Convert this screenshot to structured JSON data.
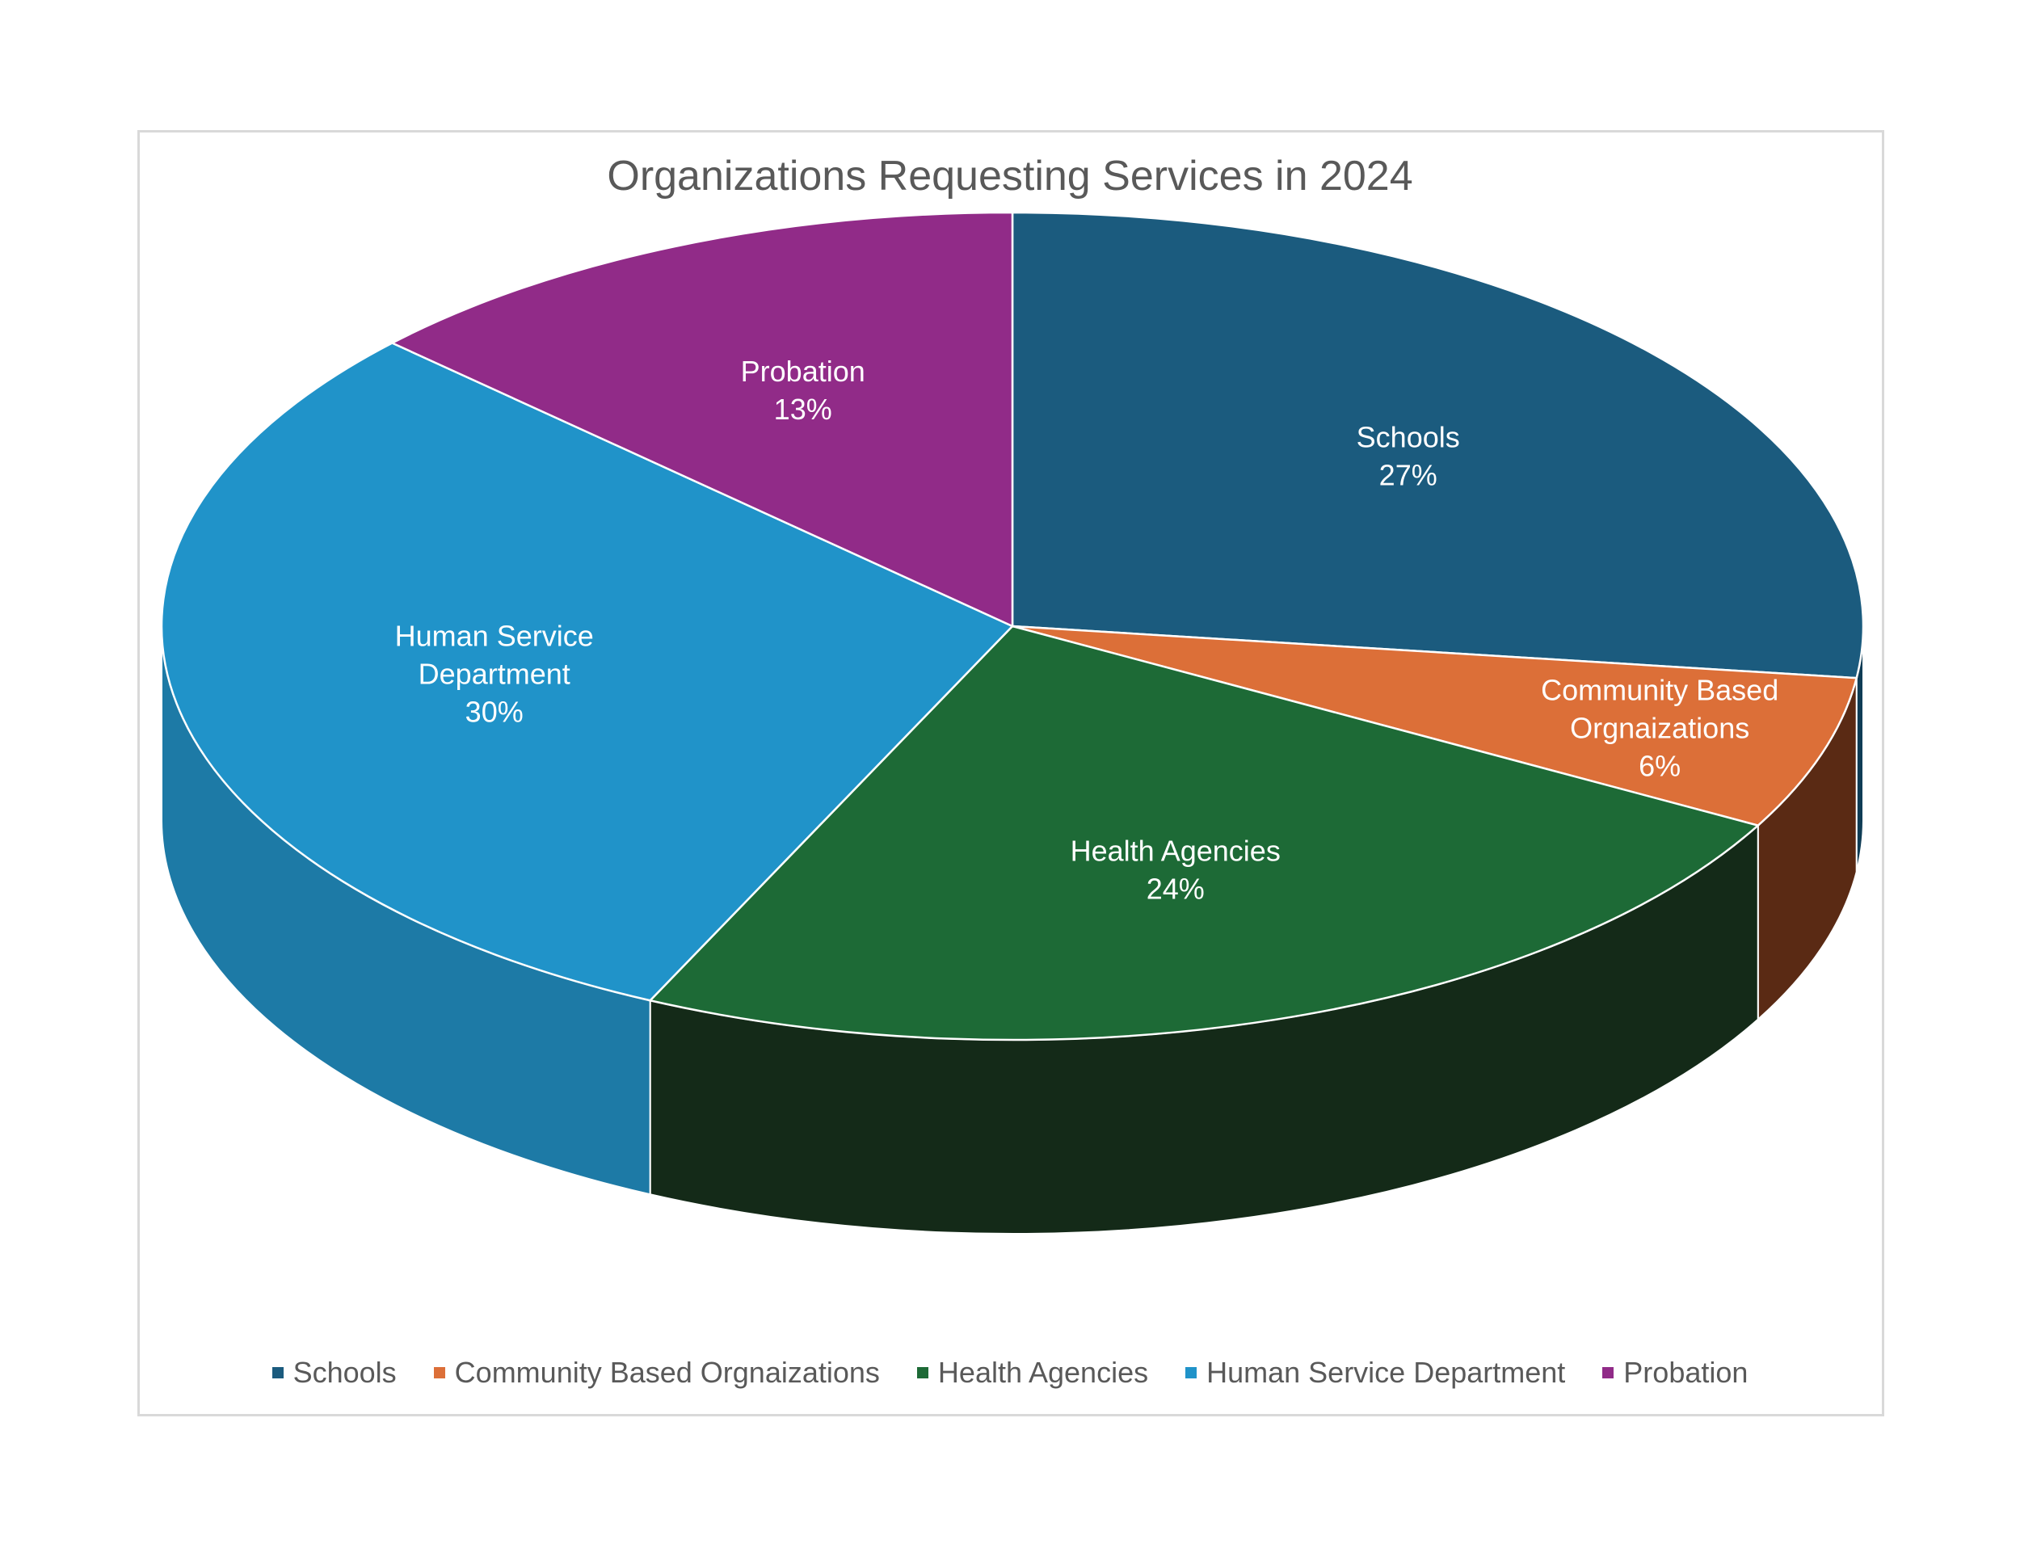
{
  "chart_data": {
    "type": "pie",
    "title": "Organizations Requesting Services in 2024",
    "legend_position": "bottom",
    "slices": [
      {
        "label": "Schools",
        "label_lines": [
          "Schools"
        ],
        "value": 27,
        "value_label": "27%",
        "color": "#1b5b7e",
        "side_color": "#0f3c55"
      },
      {
        "label": "Community Based Orgnaizations",
        "label_lines": [
          "Community Based",
          "Orgnaizations"
        ],
        "value": 6,
        "value_label": "6%",
        "color": "#dc6f38",
        "side_color": "#5a2a14"
      },
      {
        "label": "Health Agencies",
        "label_lines": [
          "Health Agencies"
        ],
        "value": 24,
        "value_label": "24%",
        "color": "#1d6a36",
        "side_color": "#142a18"
      },
      {
        "label": "Human Service Department",
        "label_lines": [
          "Human Service",
          "Department"
        ],
        "value": 30,
        "value_label": "30%",
        "color": "#2093c9",
        "side_color": "#1d7aa6"
      },
      {
        "label": "Probation",
        "label_lines": [
          "Probation"
        ],
        "value": 13,
        "value_label": "13%",
        "color": "#912b88",
        "side_color": "#6a1f63"
      }
    ]
  }
}
